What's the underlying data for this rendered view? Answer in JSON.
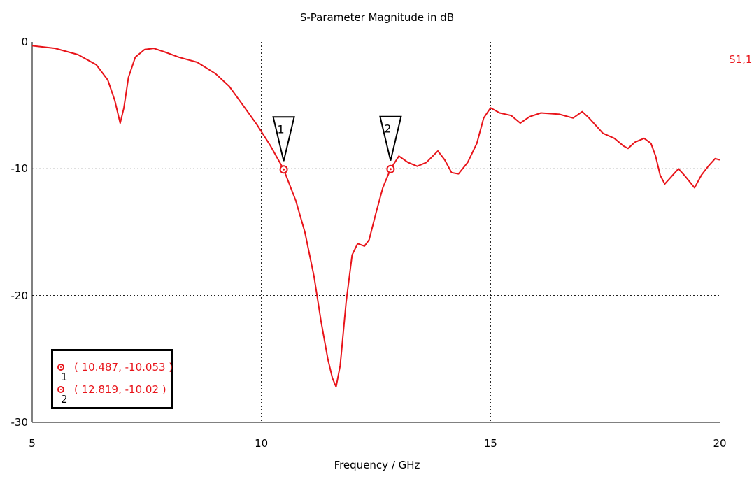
{
  "chart_data": {
    "type": "line",
    "title": "S-Parameter Magnitude in dB",
    "xlabel": "Frequency / GHz",
    "ylabel": "",
    "xlim": [
      5,
      20
    ],
    "ylim": [
      -30,
      0
    ],
    "x_ticks": [
      "5",
      "10",
      "15",
      "20"
    ],
    "y_ticks": [
      "0",
      "-10",
      "-20",
      "-30"
    ],
    "grid": true,
    "series": [
      {
        "name": "S1,1",
        "color": "#e8141a",
        "points": [
          [
            5.0,
            -0.3
          ],
          [
            5.5,
            -0.5
          ],
          [
            6.0,
            -1.0
          ],
          [
            6.4,
            -1.8
          ],
          [
            6.65,
            -3.0
          ],
          [
            6.8,
            -4.6
          ],
          [
            6.92,
            -6.4
          ],
          [
            7.0,
            -5.2
          ],
          [
            7.1,
            -2.8
          ],
          [
            7.25,
            -1.2
          ],
          [
            7.45,
            -0.6
          ],
          [
            7.65,
            -0.5
          ],
          [
            7.9,
            -0.8
          ],
          [
            8.2,
            -1.2
          ],
          [
            8.6,
            -1.6
          ],
          [
            9.0,
            -2.5
          ],
          [
            9.3,
            -3.5
          ],
          [
            9.6,
            -5.0
          ],
          [
            9.9,
            -6.5
          ],
          [
            10.2,
            -8.2
          ],
          [
            10.487,
            -10.053
          ],
          [
            10.75,
            -12.5
          ],
          [
            10.95,
            -15.0
          ],
          [
            11.15,
            -18.5
          ],
          [
            11.3,
            -22.0
          ],
          [
            11.45,
            -25.0
          ],
          [
            11.55,
            -26.5
          ],
          [
            11.63,
            -27.2
          ],
          [
            11.72,
            -25.5
          ],
          [
            11.85,
            -20.5
          ],
          [
            11.98,
            -16.8
          ],
          [
            12.1,
            -15.9
          ],
          [
            12.25,
            -16.1
          ],
          [
            12.35,
            -15.6
          ],
          [
            12.5,
            -13.5
          ],
          [
            12.65,
            -11.5
          ],
          [
            12.819,
            -10.02
          ],
          [
            13.0,
            -9.0
          ],
          [
            13.2,
            -9.5
          ],
          [
            13.4,
            -9.8
          ],
          [
            13.6,
            -9.5
          ],
          [
            13.85,
            -8.6
          ],
          [
            14.0,
            -9.3
          ],
          [
            14.15,
            -10.3
          ],
          [
            14.3,
            -10.4
          ],
          [
            14.5,
            -9.5
          ],
          [
            14.7,
            -8.0
          ],
          [
            14.85,
            -6.0
          ],
          [
            15.0,
            -5.2
          ],
          [
            15.2,
            -5.6
          ],
          [
            15.45,
            -5.8
          ],
          [
            15.65,
            -6.4
          ],
          [
            15.85,
            -5.9
          ],
          [
            16.1,
            -5.6
          ],
          [
            16.5,
            -5.7
          ],
          [
            16.8,
            -6.0
          ],
          [
            17.0,
            -5.5
          ],
          [
            17.15,
            -6.0
          ],
          [
            17.3,
            -6.6
          ],
          [
            17.45,
            -7.2
          ],
          [
            17.7,
            -7.6
          ],
          [
            17.9,
            -8.2
          ],
          [
            18.0,
            -8.4
          ],
          [
            18.15,
            -7.9
          ],
          [
            18.35,
            -7.6
          ],
          [
            18.5,
            -8.0
          ],
          [
            18.6,
            -9.0
          ],
          [
            18.7,
            -10.5
          ],
          [
            18.8,
            -11.2
          ],
          [
            18.95,
            -10.6
          ],
          [
            19.1,
            -10.0
          ],
          [
            19.25,
            -10.6
          ],
          [
            19.45,
            -11.5
          ],
          [
            19.6,
            -10.5
          ],
          [
            19.75,
            -9.8
          ],
          [
            19.9,
            -9.2
          ],
          [
            20.0,
            -9.3
          ]
        ]
      }
    ],
    "markers": [
      {
        "label": "1",
        "x": 10.487,
        "y": -10.053,
        "readout": "( 10.487, -10.053 )"
      },
      {
        "label": "2",
        "x": 12.819,
        "y": -10.02,
        "readout": "( 12.819, -10.02 )"
      }
    ],
    "legend": {
      "entries": [
        "S1,1"
      ],
      "placement": "right"
    }
  }
}
